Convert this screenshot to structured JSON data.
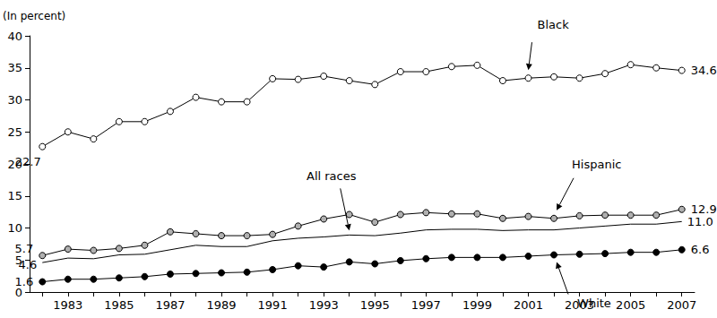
{
  "chart_data": {
    "type": "line",
    "ylabel": "(In percent)",
    "categories": [
      null,
      "1983",
      null,
      "1985",
      null,
      "1987",
      null,
      "1989",
      null,
      "1991",
      null,
      "1993",
      null,
      "1995",
      null,
      "1997",
      null,
      "1999",
      null,
      "2001",
      null,
      "2003",
      null,
      "2005",
      null,
      "2007"
    ],
    "ylim": [
      0,
      40
    ],
    "yticks": [
      0,
      5,
      10,
      15,
      20,
      25,
      30,
      35,
      40
    ],
    "grid": false,
    "data_labels": true,
    "series": [
      {
        "name": "Black",
        "color": "#ffffff",
        "marker": "circle",
        "line_style": "solid",
        "values": [
          22.7,
          25.0,
          23.9,
          26.6,
          26.6,
          28.2,
          30.4,
          29.7,
          29.7,
          33.3,
          33.2,
          33.7,
          33.0,
          32.4,
          34.4,
          34.4,
          35.2,
          35.4,
          33.0,
          33.4,
          33.6,
          33.4,
          34.1,
          35.5,
          35.0,
          34.6
        ],
        "value_labels": [
          "22.7",
          null,
          null,
          null,
          null,
          null,
          null,
          null,
          null,
          null,
          null,
          null,
          null,
          null,
          null,
          null,
          null,
          null,
          null,
          null,
          null,
          null,
          null,
          null,
          null,
          "34.6"
        ]
      },
      {
        "name": "Hispanic",
        "color": "#b0b0b0",
        "marker": "circle",
        "line_style": "solid",
        "values": [
          5.7,
          6.7,
          6.5,
          6.8,
          7.3,
          9.4,
          9.1,
          8.8,
          8.8,
          9.0,
          10.3,
          11.4,
          12.1,
          10.9,
          12.1,
          12.4,
          12.2,
          12.2,
          11.5,
          11.8,
          11.5,
          11.9,
          12.0,
          12.0,
          12.0,
          12.9
        ],
        "value_labels": [
          "5.7",
          null,
          null,
          null,
          null,
          null,
          null,
          null,
          null,
          null,
          null,
          null,
          null,
          null,
          null,
          null,
          null,
          null,
          null,
          null,
          null,
          null,
          null,
          null,
          null,
          "12.9"
        ]
      },
      {
        "name": "All races",
        "color": "#000000",
        "marker": "none",
        "line_style": "solid",
        "values": [
          4.6,
          5.3,
          5.2,
          5.8,
          5.9,
          6.6,
          7.3,
          7.1,
          7.1,
          8.0,
          8.4,
          8.6,
          8.9,
          8.8,
          9.2,
          9.7,
          9.8,
          9.8,
          9.6,
          9.7,
          9.7,
          10.0,
          10.3,
          10.6,
          10.6,
          11.0
        ],
        "value_labels": [
          "4.6",
          null,
          null,
          null,
          null,
          null,
          null,
          null,
          null,
          null,
          null,
          null,
          null,
          null,
          null,
          null,
          null,
          null,
          null,
          null,
          null,
          null,
          null,
          null,
          null,
          "11.0"
        ]
      },
      {
        "name": "White",
        "color": "#000000",
        "marker": "circle",
        "line_style": "solid",
        "values": [
          1.6,
          2.0,
          2.0,
          2.2,
          2.4,
          2.8,
          2.9,
          3.0,
          3.1,
          3.5,
          4.1,
          3.9,
          4.7,
          4.4,
          4.9,
          5.2,
          5.4,
          5.4,
          5.4,
          5.6,
          5.8,
          5.9,
          6.0,
          6.2,
          6.2,
          6.6
        ],
        "value_labels": [
          "1.6",
          null,
          null,
          null,
          null,
          null,
          null,
          null,
          null,
          null,
          null,
          null,
          null,
          null,
          null,
          null,
          null,
          null,
          null,
          null,
          null,
          null,
          null,
          null,
          null,
          "6.6"
        ]
      }
    ]
  }
}
